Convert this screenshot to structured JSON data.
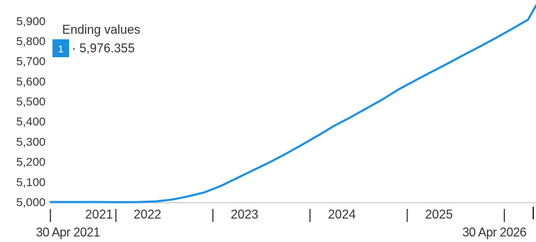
{
  "chart_data": {
    "type": "line",
    "xlim": [
      "2021-04-30",
      "2026-04-30"
    ],
    "ylim": [
      5000,
      5976.355
    ],
    "yticks": [
      5000,
      5100,
      5200,
      5300,
      5400,
      5500,
      5600,
      5700,
      5800,
      5900
    ],
    "ytick_labels": [
      "5,000",
      "5,100",
      "5,200",
      "5,300",
      "5,400",
      "5,500",
      "5,600",
      "5,700",
      "5,800",
      "5,900"
    ],
    "xtick_labels": [
      {
        "label": "2021",
        "x": "2021-10-30"
      },
      {
        "label": "2022",
        "x": "2022-04-30"
      },
      {
        "label": "2023",
        "x": "2023-04-30"
      },
      {
        "label": "2024",
        "x": "2024-04-30"
      },
      {
        "label": "2025",
        "x": "2025-04-30"
      }
    ],
    "x_separators": [
      "2022-01-01",
      "2023-01-01",
      "2024-01-01",
      "2025-01-01",
      "2026-01-01"
    ],
    "start_date_label": "30 Apr 2021",
    "end_date_label": "30 Apr 2026",
    "legend": {
      "title": "Ending values",
      "entries": [
        {
          "badge": "1",
          "value": "5,976.355"
        }
      ]
    },
    "grid": false,
    "series": [
      {
        "color": "#1a8fe3",
        "points": [
          [
            "2021-04-30",
            5000
          ],
          [
            "2021-07-31",
            5000
          ],
          [
            "2021-10-31",
            5000
          ],
          [
            "2021-12-31",
            4999
          ],
          [
            "2022-03-31",
            5000
          ],
          [
            "2022-05-31",
            5003
          ],
          [
            "2022-07-31",
            5012
          ],
          [
            "2022-09-30",
            5028
          ],
          [
            "2022-11-30",
            5048
          ],
          [
            "2023-01-31",
            5080
          ],
          [
            "2023-03-31",
            5118
          ],
          [
            "2023-05-31",
            5157
          ],
          [
            "2023-07-31",
            5196
          ],
          [
            "2023-09-30",
            5238
          ],
          [
            "2023-11-30",
            5283
          ],
          [
            "2024-01-31",
            5330
          ],
          [
            "2024-03-31",
            5378
          ],
          [
            "2024-05-31",
            5420
          ],
          [
            "2024-07-31",
            5465
          ],
          [
            "2024-09-30",
            5510
          ],
          [
            "2024-11-30",
            5560
          ],
          [
            "2025-01-31",
            5604
          ],
          [
            "2025-03-31",
            5645
          ],
          [
            "2025-05-31",
            5687
          ],
          [
            "2025-07-31",
            5730
          ],
          [
            "2025-09-30",
            5772
          ],
          [
            "2025-11-30",
            5815
          ],
          [
            "2026-01-31",
            5861
          ],
          [
            "2026-03-31",
            5906
          ],
          [
            "2026-04-30",
            5976.355
          ]
        ]
      }
    ]
  }
}
